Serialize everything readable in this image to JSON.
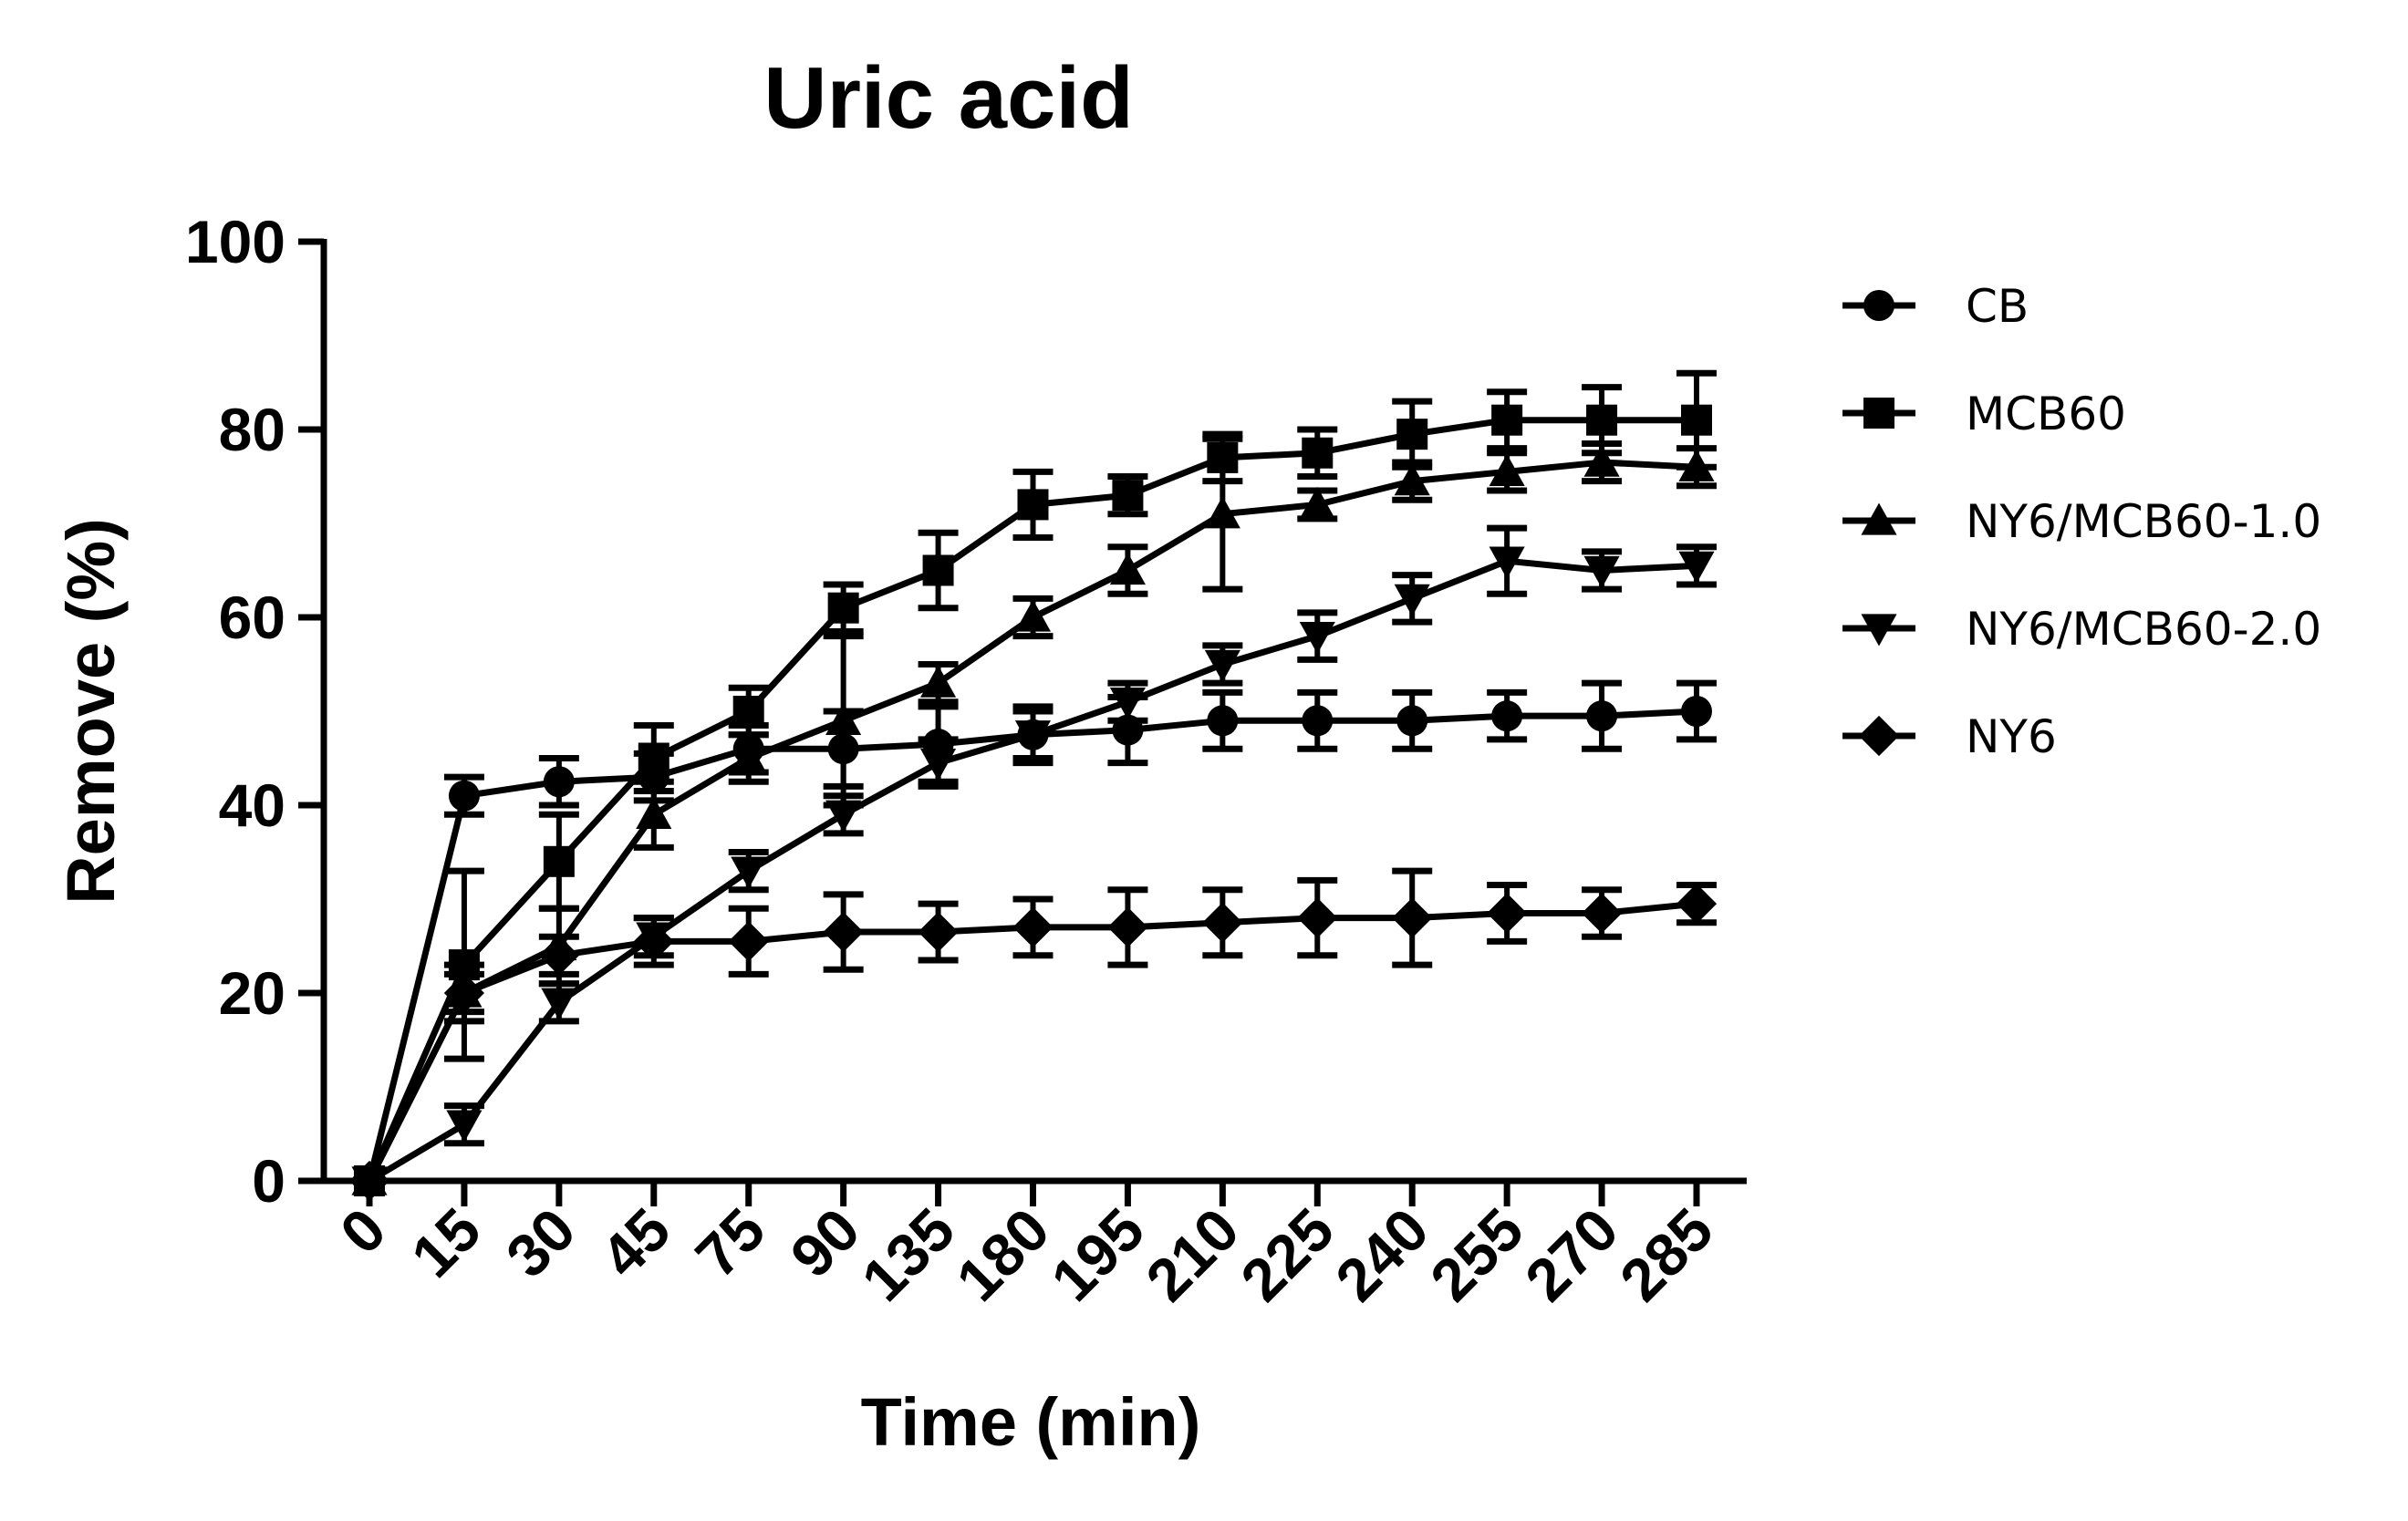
{
  "chart_data": {
    "type": "line",
    "title": "Uric acid",
    "xlabel": "Time (min)",
    "ylabel": "Remove (%)",
    "categories": [
      "0",
      "15",
      "30",
      "45",
      "75",
      "90",
      "135",
      "180",
      "195",
      "210",
      "225",
      "240",
      "255",
      "270",
      "285"
    ],
    "ylim": [
      0,
      100
    ],
    "yticks": [
      "0",
      "20",
      "40",
      "60",
      "80",
      "100"
    ],
    "grid": false,
    "legend_position": "right",
    "series": [
      {
        "name": "CB",
        "marker": "circle",
        "values": [
          0,
          41,
          42.5,
          43,
          46,
          46,
          46.5,
          47.5,
          48,
          49,
          49,
          49,
          49.5,
          49.5,
          50
        ],
        "errors": [
          0,
          2,
          2.5,
          2.5,
          2.5,
          4,
          4,
          3,
          3.5,
          3,
          3,
          3,
          2.5,
          3.5,
          3
        ]
      },
      {
        "name": "MCB60",
        "marker": "square",
        "values": [
          0,
          23,
          34,
          45,
          50,
          61,
          65,
          72,
          73,
          77,
          77.5,
          79.5,
          81,
          81,
          81
        ],
        "errors": [
          0,
          10,
          5,
          3.5,
          2.5,
          2.5,
          4,
          3.5,
          2,
          2.5,
          2.5,
          3.5,
          3,
          3.5,
          5
        ]
      },
      {
        "name": "NY6/MCB60-1.0",
        "marker": "triangle-up",
        "values": [
          0,
          20,
          25,
          39,
          45,
          49,
          53,
          60,
          65,
          71,
          72,
          74.5,
          75.5,
          76.5,
          76
        ],
        "errors": [
          0,
          3,
          4,
          3.5,
          2.5,
          9,
          2,
          2,
          2.5,
          8,
          1.5,
          2,
          2,
          2,
          2
        ]
      },
      {
        "name": "NY6/MCB60-2.0",
        "marker": "triangle-down",
        "values": [
          0,
          6,
          19,
          26,
          33,
          39,
          44.5,
          47.5,
          51,
          55,
          58,
          62,
          66,
          65,
          65.5
        ],
        "errors": [
          0,
          2,
          2,
          2,
          2,
          2,
          2.5,
          2.5,
          2,
          2,
          2.5,
          2.5,
          3.5,
          2,
          2
        ]
      },
      {
        "name": "NY6",
        "marker": "diamond",
        "values": [
          0,
          20,
          24,
          25.5,
          25.5,
          26.5,
          26.5,
          27,
          27,
          27.5,
          28,
          28,
          28.5,
          28.5,
          29.5
        ],
        "errors": [
          0,
          2,
          2,
          2.5,
          3.5,
          4,
          3,
          3,
          4,
          3.5,
          4,
          5,
          3,
          2.5,
          2
        ]
      }
    ]
  }
}
